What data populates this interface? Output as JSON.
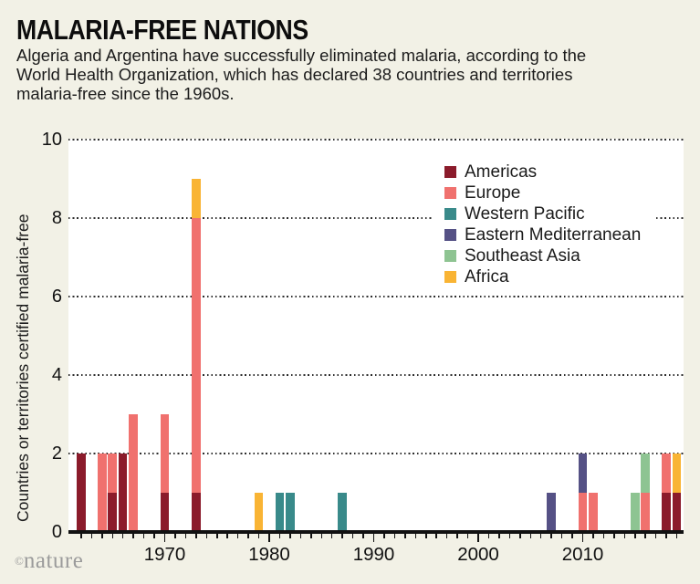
{
  "header": {
    "title": "MALARIA-FREE NATIONS",
    "subtitle": "Algeria and Argentina have successfully eliminated malaria, according to the World Health Organization, which has declared 38 countries and territories malaria-free since the 1960s."
  },
  "credit": {
    "symbol": "©",
    "text": "nature"
  },
  "colors": {
    "background": "#f2f1e6",
    "plot_background": "#ffffff",
    "ink": "#111111",
    "grid_dots": "#2d2d2d",
    "credit_gray": "#9b9b9b"
  },
  "chart_data": {
    "type": "bar",
    "stacked": true,
    "title": "MALARIA-FREE NATIONS",
    "xlabel": "",
    "ylabel": "Countries or territories certified malaria-free",
    "ylim": [
      0,
      10
    ],
    "yticks": [
      0,
      2,
      4,
      6,
      8,
      10
    ],
    "grid": "horizontal dotted lines at y = 2, 4, 6, 8, 10",
    "x_axis_years_range": [
      1962,
      2019
    ],
    "xtick_decade_labels": [
      "1970",
      "1980",
      "1990",
      "2000",
      "2010"
    ],
    "legend_position": "upper-right inside plot",
    "stack_order_bottom_to_top": [
      "Americas",
      "Europe",
      "Western Pacific",
      "Eastern Mediterranean",
      "Southeast Asia",
      "Africa"
    ],
    "legend": [
      {
        "name": "Americas",
        "color": "#8b1b2b"
      },
      {
        "name": "Europe",
        "color": "#f0716e"
      },
      {
        "name": "Western Pacific",
        "color": "#398a8a"
      },
      {
        "name": "Eastern Mediterranean",
        "color": "#555185"
      },
      {
        "name": "Southeast Asia",
        "color": "#8ec492"
      },
      {
        "name": "Africa",
        "color": "#f9b434"
      }
    ],
    "bars": [
      {
        "year": 1962,
        "total": 2,
        "segments": [
          {
            "region": "Americas",
            "value": 2
          }
        ]
      },
      {
        "year": 1964,
        "total": 2,
        "segments": [
          {
            "region": "Europe",
            "value": 2
          }
        ]
      },
      {
        "year": 1965,
        "total": 2,
        "segments": [
          {
            "region": "Americas",
            "value": 1
          },
          {
            "region": "Europe",
            "value": 1
          }
        ]
      },
      {
        "year": 1966,
        "total": 2,
        "segments": [
          {
            "region": "Americas",
            "value": 2
          }
        ]
      },
      {
        "year": 1967,
        "total": 3,
        "segments": [
          {
            "region": "Europe",
            "value": 3
          }
        ]
      },
      {
        "year": 1970,
        "total": 3,
        "segments": [
          {
            "region": "Americas",
            "value": 1
          },
          {
            "region": "Europe",
            "value": 2
          }
        ]
      },
      {
        "year": 1973,
        "total": 9,
        "segments": [
          {
            "region": "Americas",
            "value": 1
          },
          {
            "region": "Europe",
            "value": 7
          },
          {
            "region": "Africa",
            "value": 1
          }
        ]
      },
      {
        "year": 1979,
        "total": 1,
        "segments": [
          {
            "region": "Africa",
            "value": 1
          }
        ]
      },
      {
        "year": 1981,
        "total": 1,
        "segments": [
          {
            "region": "Western Pacific",
            "value": 1
          }
        ]
      },
      {
        "year": 1982,
        "total": 1,
        "segments": [
          {
            "region": "Western Pacific",
            "value": 1
          }
        ]
      },
      {
        "year": 1987,
        "total": 1,
        "segments": [
          {
            "region": "Western Pacific",
            "value": 1
          }
        ]
      },
      {
        "year": 2007,
        "total": 1,
        "segments": [
          {
            "region": "Eastern Mediterranean",
            "value": 1
          }
        ]
      },
      {
        "year": 2010,
        "total": 2,
        "segments": [
          {
            "region": "Europe",
            "value": 1
          },
          {
            "region": "Eastern Mediterranean",
            "value": 1
          }
        ]
      },
      {
        "year": 2011,
        "total": 1,
        "segments": [
          {
            "region": "Europe",
            "value": 1
          }
        ]
      },
      {
        "year": 2015,
        "total": 1,
        "segments": [
          {
            "region": "Southeast Asia",
            "value": 1
          }
        ]
      },
      {
        "year": 2016,
        "total": 2,
        "segments": [
          {
            "region": "Europe",
            "value": 1
          },
          {
            "region": "Southeast Asia",
            "value": 1
          }
        ]
      },
      {
        "year": 2018,
        "total": 2,
        "segments": [
          {
            "region": "Americas",
            "value": 1
          },
          {
            "region": "Europe",
            "value": 1
          }
        ]
      },
      {
        "year": 2019,
        "total": 2,
        "segments": [
          {
            "region": "Americas",
            "value": 1
          },
          {
            "region": "Africa",
            "value": 1
          }
        ]
      }
    ],
    "total_certified_shown_in_text": 38
  }
}
